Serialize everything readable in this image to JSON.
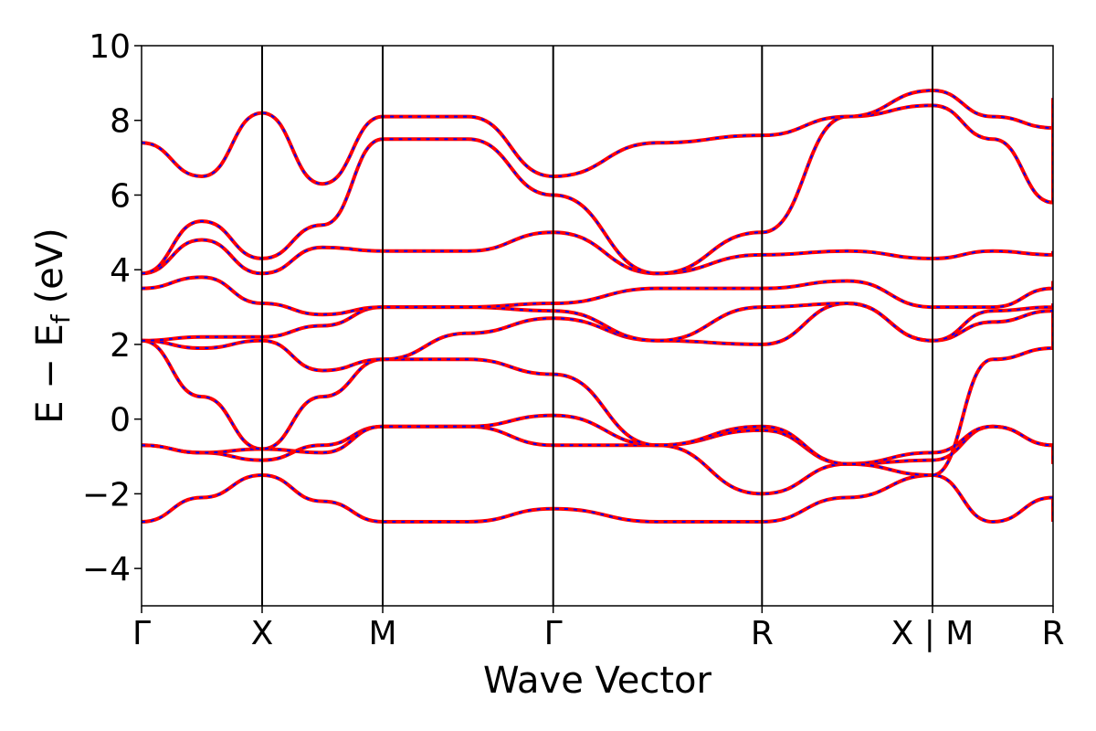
{
  "chart_data": {
    "type": "line",
    "xlabel": "Wave Vector",
    "ylabel": "E − E_f (eV)",
    "ylabel_parts": {
      "main": "E − E",
      "sub": "f",
      "unit": "(eV)"
    },
    "ylim": [
      -5,
      10
    ],
    "yticks": [
      -4,
      -2,
      0,
      2,
      4,
      6,
      8,
      10
    ],
    "ytick_labels": [
      "−4",
      "−2",
      "0",
      "2",
      "4",
      "6",
      "8",
      "10"
    ],
    "high_symmetry_points": [
      {
        "label": "Γ",
        "k": 0
      },
      {
        "label": "X",
        "k": 1
      },
      {
        "label": "M",
        "k": 2
      },
      {
        "label": "Γ",
        "k": 3.414
      },
      {
        "label": "R",
        "k": 5.146
      },
      {
        "label": "X | M",
        "k": 6.56
      },
      {
        "label": "R",
        "k": 7.56
      }
    ],
    "segments": [
      {
        "from": "Γ",
        "to": "X",
        "k_start": 0,
        "k_end": 1
      },
      {
        "from": "X",
        "to": "M",
        "k_start": 1,
        "k_end": 2
      },
      {
        "from": "M",
        "to": "Γ",
        "k_start": 2,
        "k_end": 3.414
      },
      {
        "from": "Γ",
        "to": "R",
        "k_start": 3.414,
        "k_end": 5.146
      },
      {
        "from": "R",
        "to": "X",
        "k_start": 5.146,
        "k_end": 6.56
      },
      {
        "from": "M",
        "to": "R",
        "k_start": 6.56,
        "k_end": 7.56
      }
    ],
    "series_colors": {
      "solid": "#ff0000",
      "dashed": "#0000ff"
    },
    "bands": [
      [
        -2.75,
        -2.1,
        -1.5,
        -2.2,
        -2.75,
        -2.75,
        -2.4,
        -2.75,
        -2.75,
        -2.1,
        -1.5,
        -2.75,
        -2.1,
        -2.75
      ],
      [
        -0.7,
        -0.9,
        -1.1,
        -0.7,
        -0.2,
        -0.2,
        -0.7,
        -0.7,
        -2.0,
        -1.2,
        -1.1,
        -0.2,
        -0.7,
        -1.2
      ],
      [
        -0.7,
        -0.9,
        -0.8,
        -0.9,
        -0.2,
        -0.2,
        0.1,
        -0.7,
        -0.3,
        -1.2,
        -0.9,
        -0.2,
        -0.7,
        -1.2
      ],
      [
        2.1,
        0.6,
        -0.8,
        0.6,
        1.6,
        1.6,
        1.2,
        -0.7,
        -0.2,
        -1.2,
        -1.5,
        1.6,
        1.9,
        3.1
      ],
      [
        2.1,
        1.9,
        2.1,
        1.3,
        1.6,
        2.3,
        2.7,
        2.1,
        2.0,
        3.1,
        2.1,
        2.6,
        2.9,
        3.1
      ],
      [
        2.1,
        2.2,
        2.2,
        2.5,
        3.0,
        3.0,
        2.9,
        2.1,
        3.0,
        3.1,
        2.1,
        2.9,
        3.0,
        3.1
      ],
      [
        3.5,
        3.8,
        3.1,
        2.8,
        3.0,
        3.0,
        3.1,
        3.5,
        3.5,
        3.7,
        3.0,
        3.0,
        3.5,
        3.7
      ],
      [
        3.9,
        4.8,
        3.9,
        4.6,
        4.5,
        4.5,
        5.0,
        3.9,
        4.4,
        4.5,
        4.3,
        4.5,
        4.4,
        4.5
      ],
      [
        3.9,
        5.3,
        4.3,
        5.2,
        7.5,
        7.5,
        6.0,
        3.9,
        5.0,
        8.1,
        8.4,
        7.5,
        5.8,
        8.1
      ],
      [
        7.4,
        6.5,
        8.2,
        6.3,
        8.1,
        8.1,
        6.5,
        7.4,
        7.6,
        8.1,
        8.8,
        8.1,
        7.8,
        8.6
      ]
    ]
  },
  "y_tick_keys": [
    "-4",
    "-2",
    "0",
    "2",
    "4",
    "6",
    "8",
    "10"
  ]
}
